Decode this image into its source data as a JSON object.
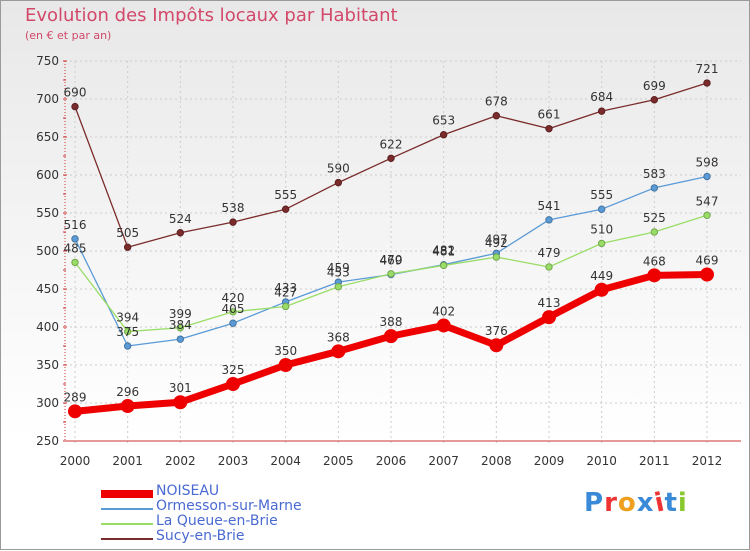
{
  "chart_data": {
    "type": "line",
    "title": "Evolution des Impôts locaux par Habitant",
    "subtitle": "(en € et par an)",
    "xlabel": "",
    "ylabel": "",
    "categories": [
      "2000",
      "2001",
      "2002",
      "2003",
      "2004",
      "2005",
      "2006",
      "2007",
      "2008",
      "2009",
      "2010",
      "2011",
      "2012"
    ],
    "ylim": [
      250,
      750
    ],
    "yticks": [
      250,
      300,
      350,
      400,
      450,
      500,
      550,
      600,
      650,
      700,
      750
    ],
    "grid": true,
    "legend_position": "bottom-left",
    "series": [
      {
        "name": "NOISEAU",
        "color": "#ee0000",
        "emphasis": true,
        "values": [
          289,
          296,
          301,
          325,
          350,
          368,
          388,
          402,
          376,
          413,
          449,
          468,
          469
        ]
      },
      {
        "name": "Ormesson-sur-Marne",
        "color": "#5a9ad6",
        "emphasis": false,
        "values": [
          516,
          375,
          384,
          405,
          433,
          459,
          469,
          482,
          497,
          541,
          555,
          583,
          598
        ]
      },
      {
        "name": "La Queue-en-Brie",
        "color": "#99dd66",
        "emphasis": false,
        "values": [
          485,
          394,
          399,
          420,
          427,
          453,
          470,
          481,
          492,
          479,
          510,
          525,
          547
        ]
      },
      {
        "name": "Sucy-en-Brie",
        "color": "#7a2b2b",
        "emphasis": false,
        "values": [
          690,
          505,
          524,
          538,
          555,
          590,
          622,
          653,
          678,
          661,
          684,
          699,
          721
        ]
      }
    ]
  },
  "logo": {
    "text": "Proxiti",
    "letter_colors": [
      "#3a8ad8",
      "#ee3333",
      "#f0a020",
      "#3a8ad8",
      "#ee3333",
      "#3a8ad8",
      "#8ac830"
    ]
  }
}
